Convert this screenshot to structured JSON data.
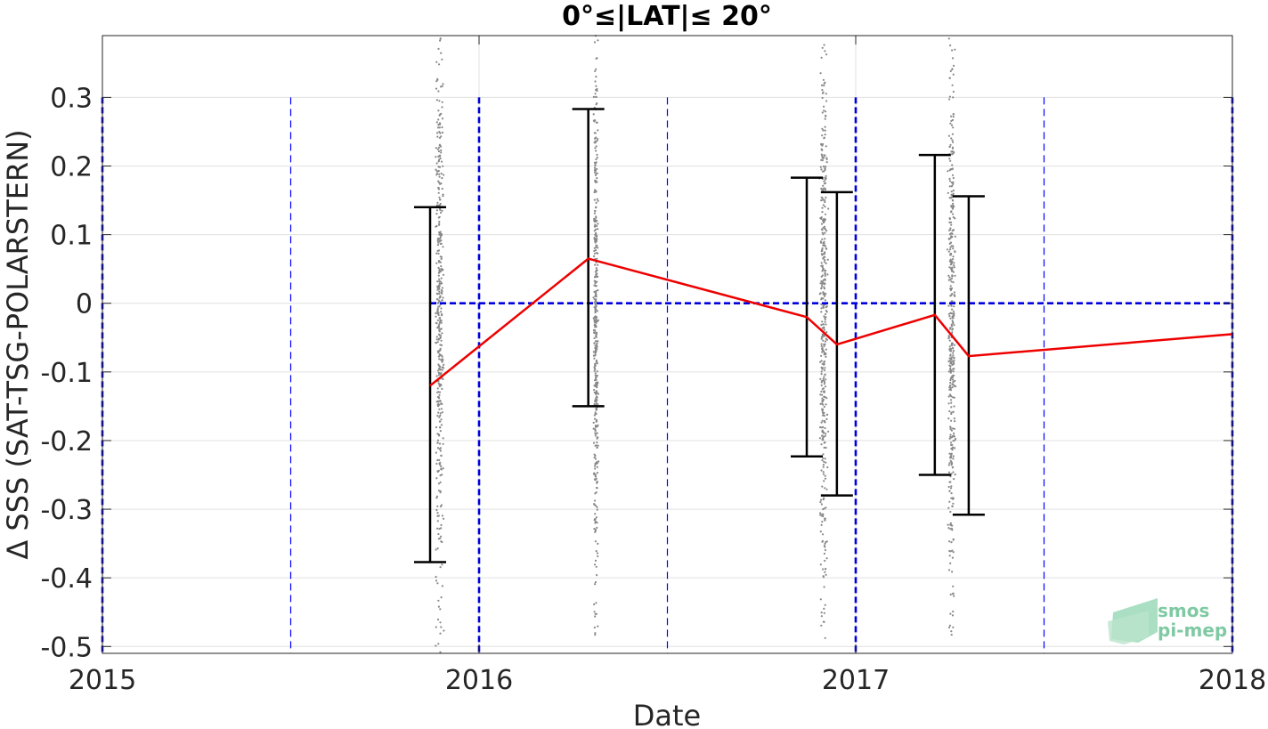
{
  "chart_data": {
    "type": "line",
    "title": "0°≤|LAT|≤ 20°",
    "xlabel": "Date",
    "ylabel": "Δ SSS (SAT-TSG-POLARSTERN)",
    "xlim": [
      2015.0,
      2018.0
    ],
    "ylim": [
      -0.51,
      0.39
    ],
    "x_ticks": [
      2015,
      2016,
      2017,
      2018
    ],
    "x_tick_labels": [
      "2015",
      "2016",
      "2017",
      "2018"
    ],
    "y_ticks": [
      0.3,
      0.2,
      0.1,
      0,
      -0.1,
      -0.2,
      -0.3,
      -0.4,
      -0.5
    ],
    "y_tick_labels": [
      "0.3",
      "0.2",
      "0.1",
      "0",
      "-0.1",
      "-0.2",
      "-0.3",
      "-0.4",
      "-0.5"
    ],
    "grid": true,
    "series": [
      {
        "style": "red-line",
        "color": "#ee0000",
        "x": [
          2015.87,
          2016.29,
          2016.87,
          2016.95,
          2017.21,
          2017.3,
          2018.0
        ],
        "y": [
          -0.12,
          0.065,
          -0.02,
          -0.06,
          -0.017,
          -0.077,
          -0.045
        ]
      }
    ],
    "error_bars": [
      {
        "x": 2015.87,
        "upper": 0.14,
        "lower": -0.377
      },
      {
        "x": 2016.29,
        "upper": 0.283,
        "lower": -0.15
      },
      {
        "x": 2016.87,
        "upper": 0.183,
        "lower": -0.223
      },
      {
        "x": 2016.95,
        "upper": 0.162,
        "lower": -0.28
      },
      {
        "x": 2017.21,
        "upper": 0.216,
        "lower": -0.25
      },
      {
        "x": 2017.3,
        "upper": 0.156,
        "lower": -0.308
      }
    ],
    "scatter_clusters": [
      {
        "x_center": 2015.895,
        "x_spread": 0.014,
        "y_min": -0.51,
        "y_max": 0.39
      },
      {
        "x_center": 2016.31,
        "x_spread": 0.008,
        "y_min": -0.49,
        "y_max": 0.39
      },
      {
        "x_center": 2016.915,
        "x_spread": 0.014,
        "y_min": -0.49,
        "y_max": 0.39
      },
      {
        "x_center": 2017.255,
        "x_spread": 0.013,
        "y_min": -0.49,
        "y_max": 0.39
      }
    ],
    "zero_reference": {
      "y": 0,
      "x_start": 2015.87,
      "x_end": 2018.0,
      "color": "#0000dd"
    },
    "year_lines": {
      "x": [
        2015,
        2016,
        2017,
        2018
      ],
      "color": "#0000dd"
    },
    "half_year_lines": {
      "x": [
        2015.5,
        2016.5,
        2017.5
      ],
      "color": "#0000ff"
    },
    "colors": {
      "scatter": "#888888",
      "error_bar": "#000000",
      "grid": "#e0e0e0"
    }
  },
  "logo": {
    "line1": "smos",
    "line2": "pi-mep"
  }
}
